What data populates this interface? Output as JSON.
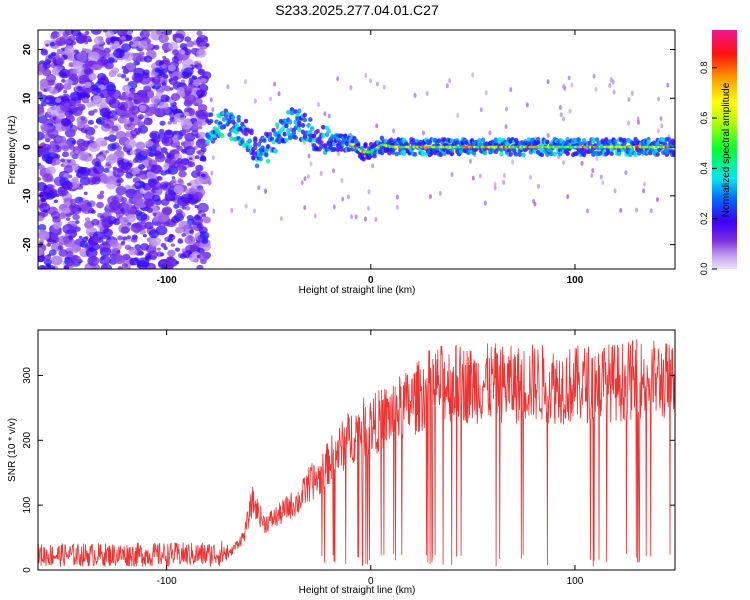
{
  "title": "S233.2025.277.04.01.C27",
  "chart_data": [
    {
      "type": "heatmap",
      "xlabel": "Height of straight line (km)",
      "ylabel": "Frequency (Hz)",
      "xlim": [
        -163,
        149
      ],
      "ylim": [
        -25,
        24
      ],
      "xticks": [
        -100,
        0,
        100
      ],
      "yticks": [
        -20,
        -10,
        0,
        10,
        20
      ],
      "colorbar": {
        "label": "Normalized spectral amplitude",
        "range": [
          0,
          0.95
        ],
        "ticks": [
          0.0,
          0.2,
          0.4,
          0.6,
          0.8
        ],
        "tick_labels": [
          "0.0",
          "0.2",
          "0.4",
          "0.6",
          "0.8"
        ]
      },
      "ridge": {
        "x": [
          -78,
          -70,
          -62,
          -56,
          -50,
          -44,
          -38,
          -32,
          -26,
          -20,
          -14,
          -8,
          -4,
          0,
          6,
          12,
          20,
          40,
          60,
          80,
          100,
          120,
          149
        ],
        "freq": [
          4,
          5,
          3,
          -1,
          0,
          3,
          5,
          4,
          2,
          1,
          1,
          0.5,
          -1,
          -1,
          0.5,
          0,
          0,
          0,
          0,
          0,
          0,
          0,
          0
        ]
      }
    },
    {
      "type": "line",
      "xlabel": "Height of straight line (km)",
      "ylabel": "SNR (10 * v/v)",
      "xlim": [
        -163,
        149
      ],
      "ylim": [
        0,
        370
      ],
      "xticks": [
        -100,
        0,
        100
      ],
      "yticks": [
        0,
        100,
        200,
        300
      ],
      "color": "#ee3333",
      "envelope": {
        "x": [
          -163,
          -80,
          -70,
          -62,
          -58,
          -52,
          -45,
          -40,
          -35,
          -30,
          -25,
          -20,
          -15,
          -10,
          -5,
          0,
          5,
          10,
          15,
          20,
          30,
          40,
          50,
          60,
          70,
          80,
          90,
          100,
          110,
          120,
          130,
          140,
          149
        ],
        "snr": [
          18,
          20,
          25,
          60,
          120,
          80,
          95,
          110,
          120,
          150,
          160,
          190,
          210,
          230,
          245,
          250,
          260,
          270,
          280,
          290,
          320,
          325,
          320,
          325,
          320,
          325,
          320,
          320,
          325,
          325,
          330,
          330,
          325
        ]
      }
    }
  ]
}
